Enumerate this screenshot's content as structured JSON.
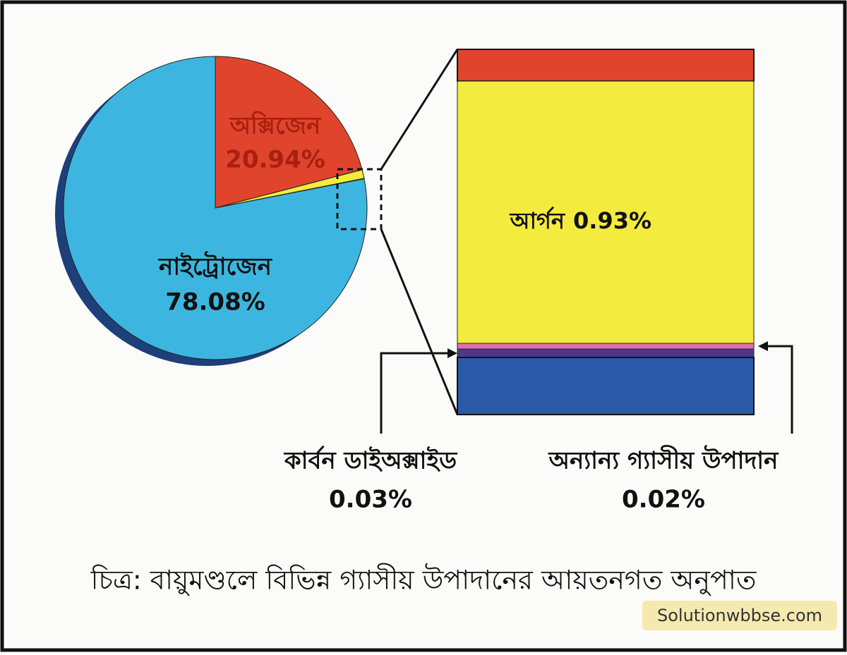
{
  "chart_data": {
    "type": "pie",
    "categories": [
      "অক্সিজেন",
      "আর্গন",
      "কার্বন ডাইঅক্সাইড",
      "অন্যান্য গ্যাসীয় উপাদান",
      "নাইট্রোজেন"
    ],
    "values": [
      20.94,
      0.93,
      0.03,
      0.02,
      78.08
    ],
    "value_labels": [
      "20.94%",
      "0.93%",
      "0.03%",
      "0.02%",
      "78.08%"
    ],
    "colors": [
      "#e0442c",
      "#f3eb3e",
      "#4a3a8c",
      "#e36fb2",
      "#3cb6e0"
    ],
    "caption": "চিত্র: বায়ুমণ্ডলে বিভিন্ন গ্যাসীয় উপাদানের আয়তনগত অনুপাত",
    "watermark": "Solutionwbbse.com"
  }
}
